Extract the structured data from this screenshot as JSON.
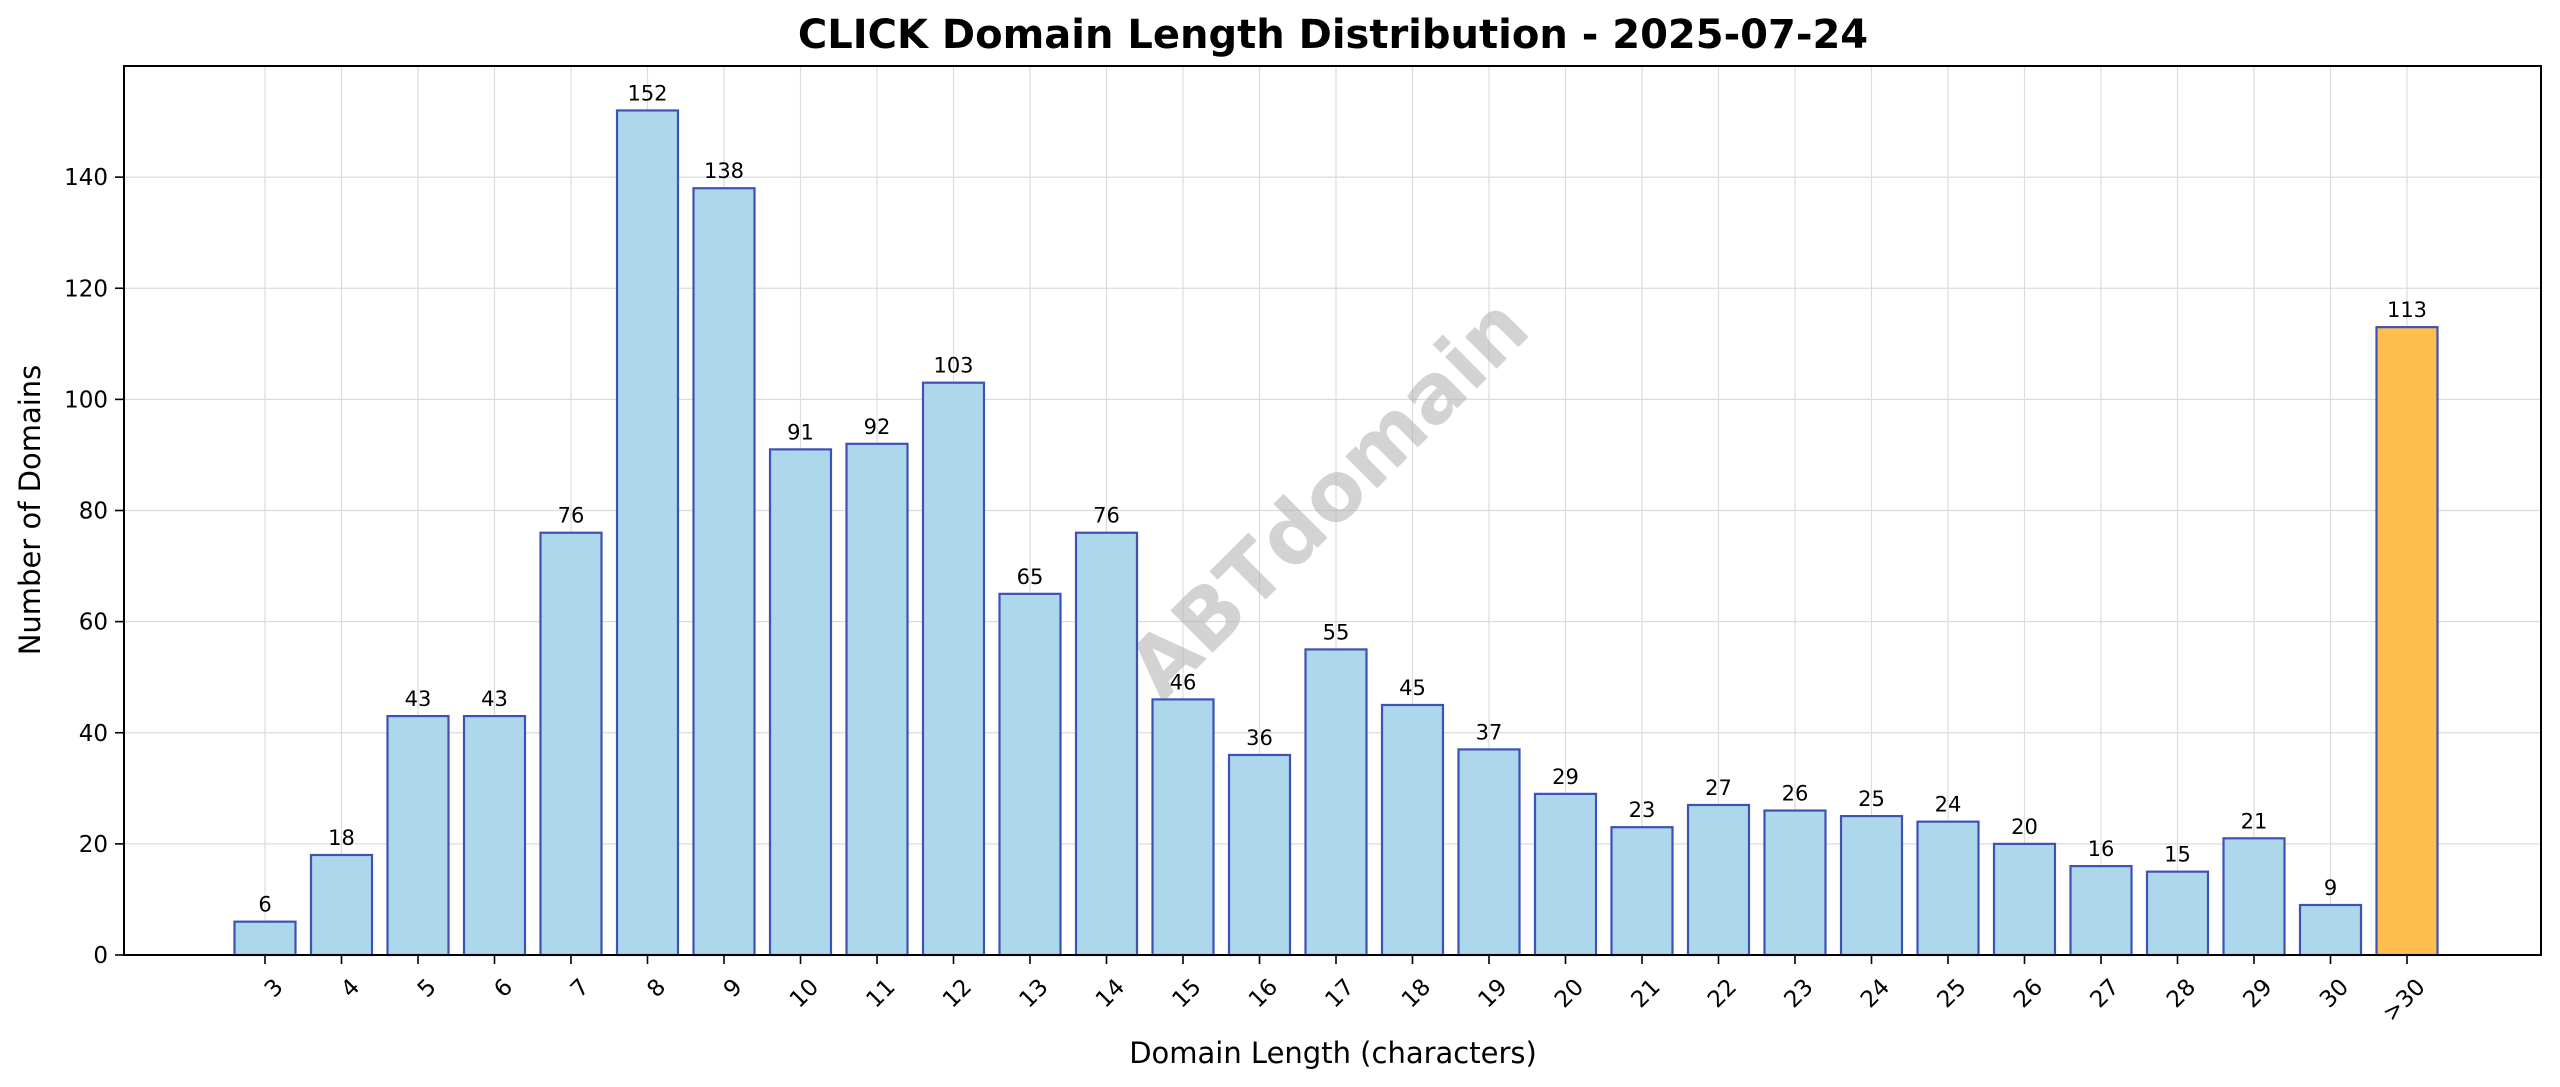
{
  "chart_data": {
    "type": "bar",
    "title": "CLICK Domain Length Distribution - 2025-07-24",
    "xlabel": "Domain Length (characters)",
    "ylabel": "Number of Domains",
    "categories": [
      "3",
      "4",
      "5",
      "6",
      "7",
      "8",
      "9",
      "10",
      "11",
      "12",
      "13",
      "14",
      "15",
      "16",
      "17",
      "18",
      "19",
      "20",
      "21",
      "22",
      "23",
      "24",
      "25",
      "26",
      "27",
      "28",
      "29",
      "30",
      ">30"
    ],
    "values": [
      6,
      18,
      43,
      43,
      76,
      152,
      138,
      91,
      92,
      103,
      65,
      76,
      46,
      36,
      55,
      45,
      37,
      29,
      23,
      27,
      26,
      25,
      24,
      20,
      16,
      15,
      21,
      9,
      113
    ],
    "data_labels": [
      "6",
      "18",
      "43",
      "43",
      "76",
      "152",
      "138",
      "91",
      "92",
      "103",
      "65",
      "76",
      "46",
      "36",
      "55",
      "45",
      "37",
      "29",
      "23",
      "27",
      "26",
      "25",
      "24",
      "20",
      "16",
      "15",
      "21",
      "9",
      "113"
    ],
    "ylim": [
      0,
      160
    ],
    "yticks": [
      0,
      20,
      40,
      60,
      80,
      100,
      120,
      140
    ],
    "ytick_labels": [
      "0",
      "20",
      "40",
      "60",
      "80",
      "100",
      "120",
      "140"
    ],
    "grid": true,
    "colors": {
      "bar_fill": "#add8ec",
      "bar_edge": "#3f51b5",
      "highlight_fill": "#ffbe4d",
      "highlight_category": ">30"
    },
    "watermark": "ABTdomain"
  }
}
